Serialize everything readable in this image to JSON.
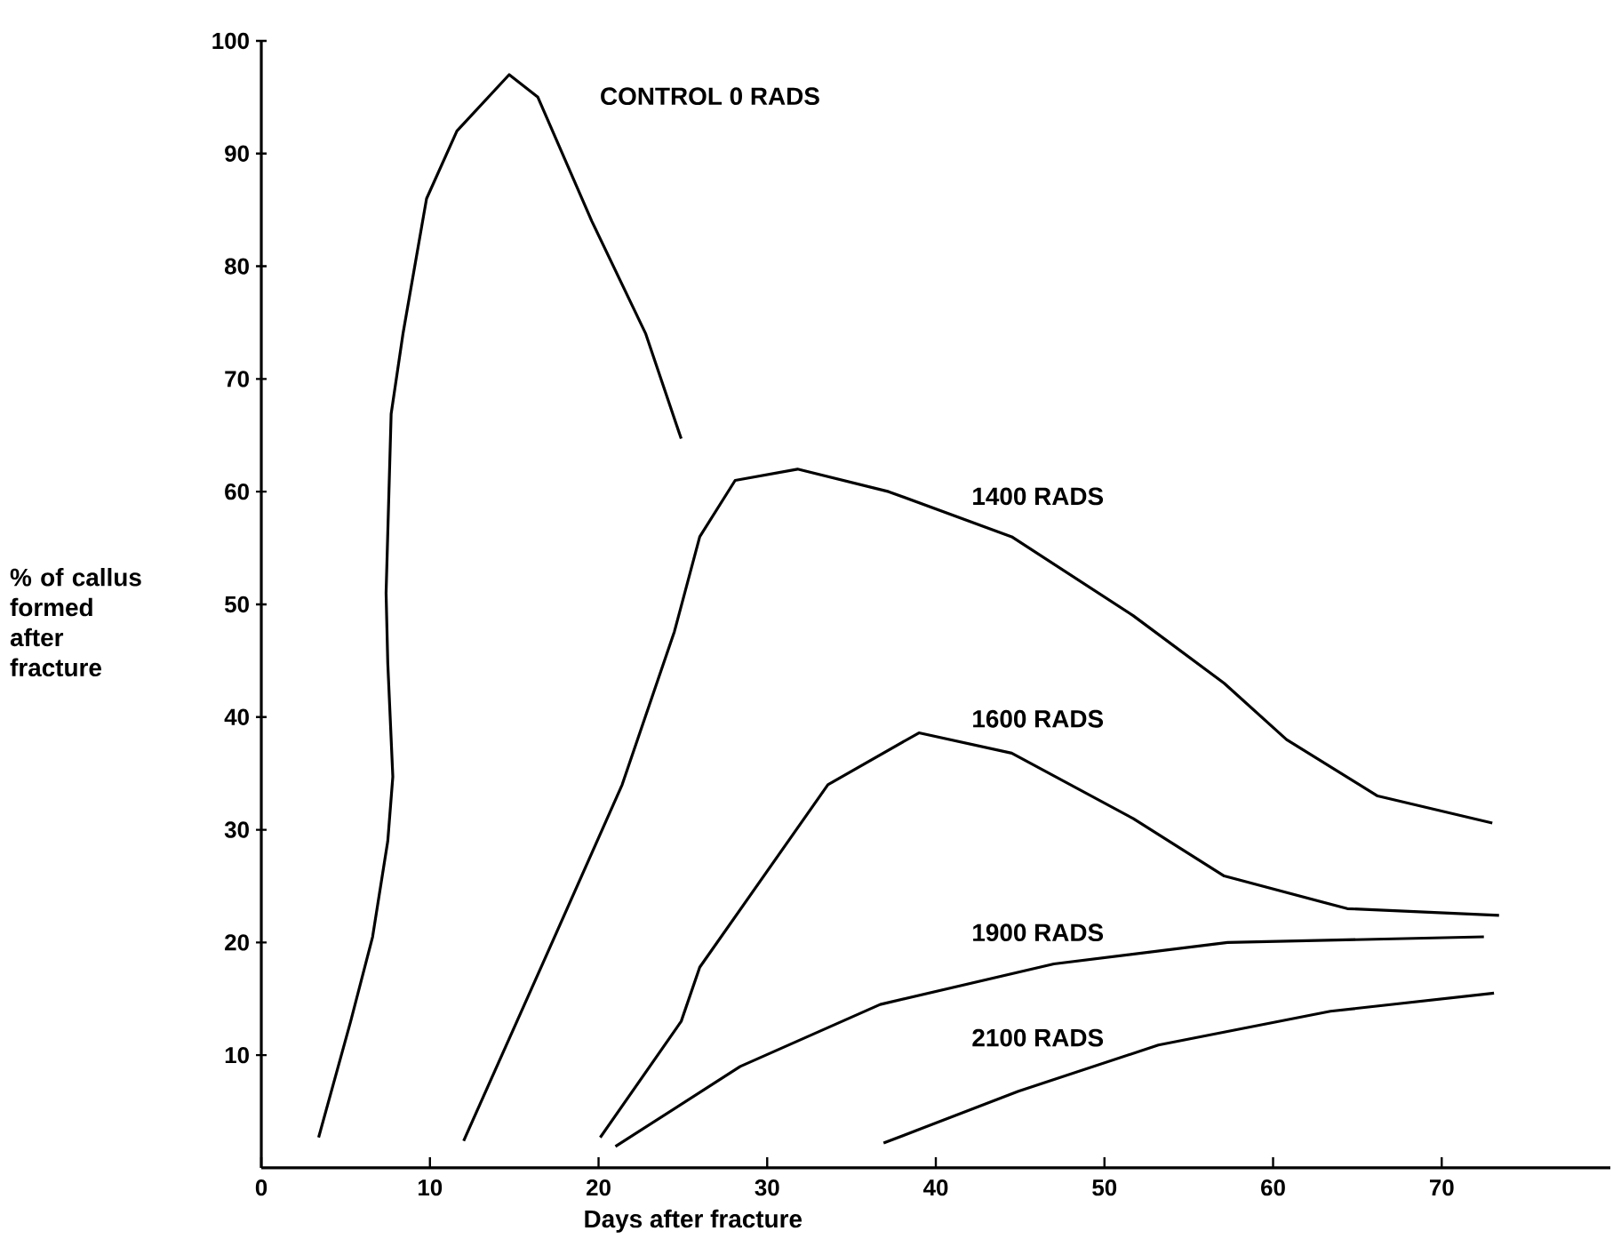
{
  "chart_data": {
    "type": "line",
    "xlabel": "Days after fracture",
    "ylabel": "% of callus formed after fracture",
    "xlim": [
      0,
      80
    ],
    "ylim": [
      0,
      100
    ],
    "xticks": [
      0,
      10,
      20,
      30,
      40,
      50,
      60,
      70
    ],
    "yticks": [
      10,
      20,
      30,
      40,
      50,
      60,
      70,
      80,
      90,
      100
    ],
    "grid": false,
    "legend": false,
    "series": [
      {
        "name": "CONTROL  0 RADS",
        "color": "#000000",
        "x": [
          3.4,
          5.3,
          6.6,
          7.5,
          7.8,
          7.5,
          7.4,
          7.7,
          8.4,
          9.8,
          11.6,
          14.7,
          16.4,
          19.6,
          22.8,
          24.9
        ],
        "values": [
          2.7,
          13,
          20.5,
          29,
          34.7,
          44.8,
          51,
          66.9,
          74,
          86,
          92,
          97,
          95,
          84,
          74,
          64.7
        ]
      },
      {
        "name": "1400  RADS",
        "color": "#000000",
        "x": [
          12,
          16.8,
          21.4,
          24.5,
          26,
          28.1,
          31.8,
          37.2,
          44.5,
          51.7,
          57.1,
          60.8,
          66.2,
          73
        ],
        "values": [
          2.4,
          18.5,
          34,
          47.6,
          56,
          61,
          62,
          60,
          56,
          49,
          43,
          38,
          33,
          30.6
        ]
      },
      {
        "name": "1600  RADS",
        "color": "#000000",
        "x": [
          20.1,
          24.9,
          26,
          33.6,
          39,
          44.5,
          51.7,
          57.1,
          64.4,
          73.4
        ],
        "values": [
          2.7,
          13,
          17.8,
          34,
          38.6,
          36.8,
          31,
          25.9,
          23,
          22.4
        ]
      },
      {
        "name": "1900 RADS",
        "color": "#000000",
        "x": [
          21,
          28.4,
          36.7,
          47,
          57.3,
          72.5
        ],
        "values": [
          1.9,
          9,
          14.5,
          18.1,
          20,
          20.5
        ]
      },
      {
        "name": "2100 RADS",
        "color": "#000000",
        "x": [
          36.9,
          44.9,
          53.2,
          63.4,
          73.1
        ],
        "values": [
          2.2,
          6.8,
          10.9,
          13.9,
          15.5
        ]
      }
    ]
  }
}
